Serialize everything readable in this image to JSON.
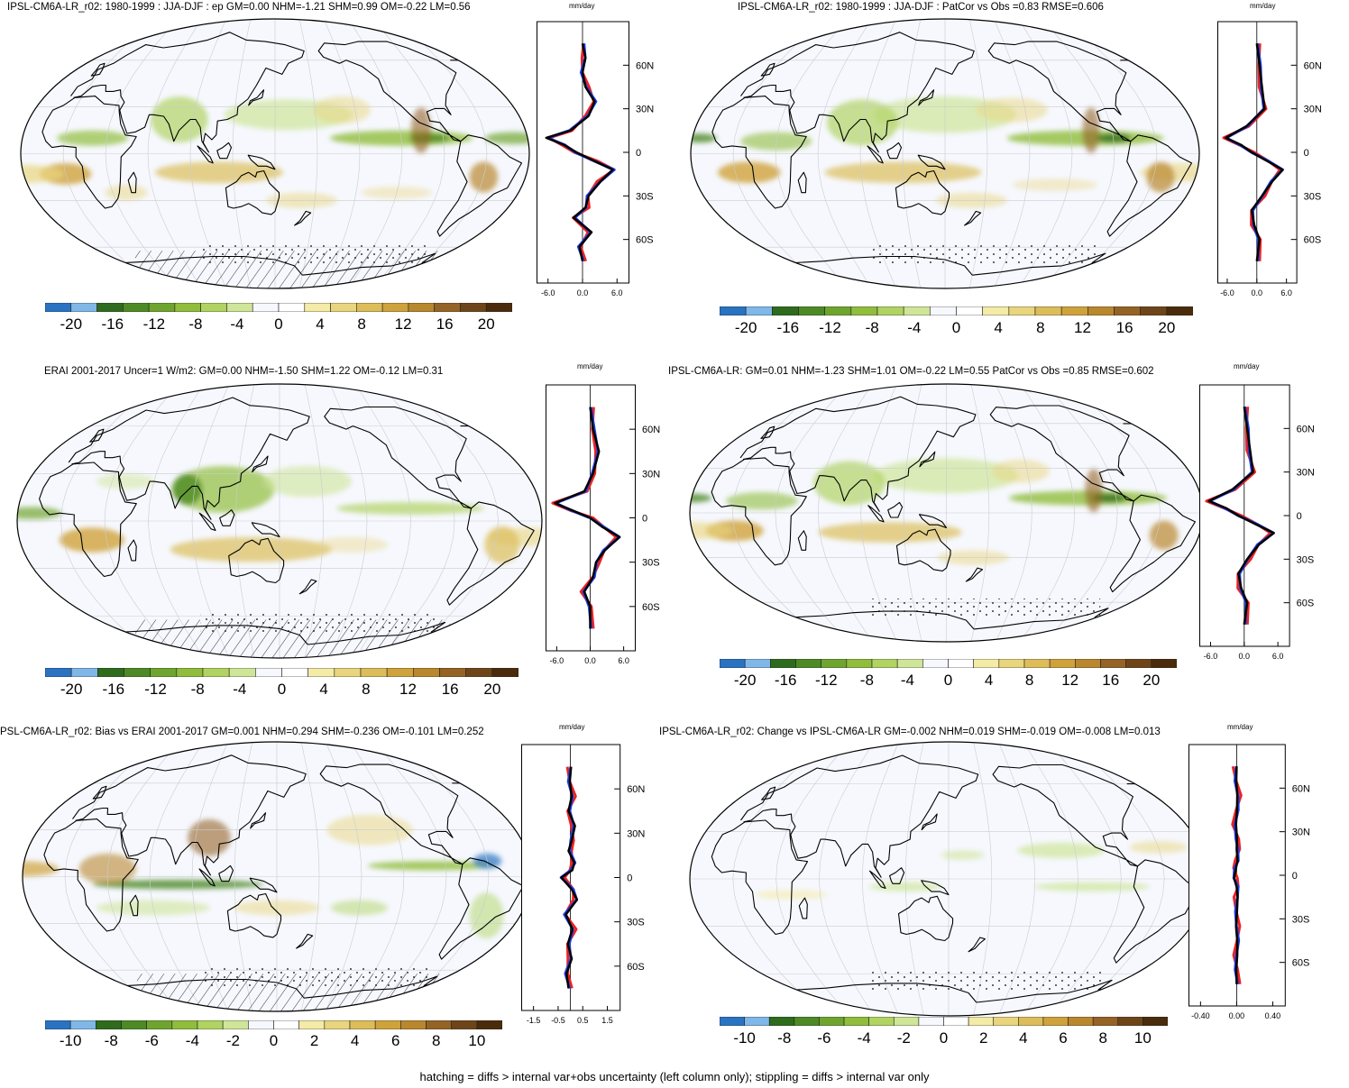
{
  "unit_label": "mm/day",
  "footer": "hatching = diffs > internal var+obs uncertainty (left column only); stippling = diffs > internal var only",
  "colors": {
    "scale": [
      "#2a73c2",
      "#7fb8e8",
      "#2f6b1c",
      "#4d8a25",
      "#6fa52f",
      "#90bd3c",
      "#b0d362",
      "#cfe598",
      "#f6f8fe",
      "#ffffff",
      "#f3eba6",
      "#e9d57d",
      "#dcbd5a",
      "#cfa23c",
      "#b9872e",
      "#946325",
      "#6e4519",
      "#4a2c0c"
    ],
    "model_line": "#1f3ee6",
    "obs_line": "#ee2222",
    "ens_line": "#000000"
  },
  "panels": [
    {
      "title": "IPSL-CM6A-LR_r02: 1980-1999 : JJA-DJF : ep GM=0.00 NHM=-1.21 SHM=0.99 OM=-0.22 LM=0.56",
      "lat_ticks": [
        "60N",
        "30N",
        "0",
        "30S",
        "60S"
      ],
      "x_ticks": [
        "-6.0",
        "0.0",
        "6.0"
      ],
      "colorbar": [
        "-20",
        "-16",
        "-12",
        "-8",
        "-4",
        "0",
        "4",
        "8",
        "12",
        "16",
        "20"
      ]
    },
    {
      "title": "IPSL-CM6A-LR_r02: 1980-1999 : JJA-DJF : PatCor vs Obs =0.83 RMSE=0.606",
      "lat_ticks": [
        "60N",
        "30N",
        "0",
        "30S",
        "60S"
      ],
      "x_ticks": [
        "-6.0",
        "0.0",
        "6.0"
      ],
      "colorbar": [
        "-20",
        "-16",
        "-12",
        "-8",
        "-4",
        "0",
        "4",
        "8",
        "12",
        "16",
        "20"
      ]
    },
    {
      "title": "ERAI 2001-2017 Uncer=1 W/m2: GM=0.00 NHM=-1.50 SHM=1.22 OM=-0.12 LM=0.31",
      "lat_ticks": [
        "60N",
        "30N",
        "0",
        "30S",
        "60S"
      ],
      "x_ticks": [
        "-6.0",
        "0.0",
        "6.0"
      ],
      "colorbar": [
        "-20",
        "-16",
        "-12",
        "-8",
        "-4",
        "0",
        "4",
        "8",
        "12",
        "16",
        "20"
      ]
    },
    {
      "title": "IPSL-CM6A-LR: GM=0.01 NHM=-1.23 SHM=1.01 OM=-0.22 LM=0.55 PatCor vs Obs =0.85 RMSE=0.602",
      "lat_ticks": [
        "60N",
        "30N",
        "0",
        "30S",
        "60S"
      ],
      "x_ticks": [
        "-6.0",
        "0.0",
        "6.0"
      ],
      "colorbar": [
        "-20",
        "-16",
        "-12",
        "-8",
        "-4",
        "0",
        "4",
        "8",
        "12",
        "16",
        "20"
      ]
    },
    {
      "title": "PSL-CM6A-LR_r02: Bias vs ERAI 2001-2017 GM=0.001 NHM=0.294 SHM=-0.236 OM=-0.101 LM=0.252",
      "lat_ticks": [
        "60N",
        "30N",
        "0",
        "30S",
        "60S"
      ],
      "x_ticks": [
        "-1.5",
        "-0.5",
        "0.5",
        "1.5"
      ],
      "colorbar": [
        "-10",
        "-8",
        "-6",
        "-4",
        "-2",
        "0",
        "2",
        "4",
        "6",
        "8",
        "10"
      ]
    },
    {
      "title": "IPSL-CM6A-LR_r02: Change vs IPSL-CM6A-LR GM=-0.002 NHM=0.019 SHM=-0.019 OM=-0.008 LM=0.013",
      "lat_ticks": [
        "60N",
        "30N",
        "0",
        "30S",
        "60S"
      ],
      "x_ticks": [
        "-0.40",
        "0.00",
        "0.40"
      ],
      "colorbar": [
        "-10",
        "-8",
        "-6",
        "-4",
        "-2",
        "0",
        "2",
        "4",
        "6",
        "8",
        "10"
      ]
    }
  ]
}
